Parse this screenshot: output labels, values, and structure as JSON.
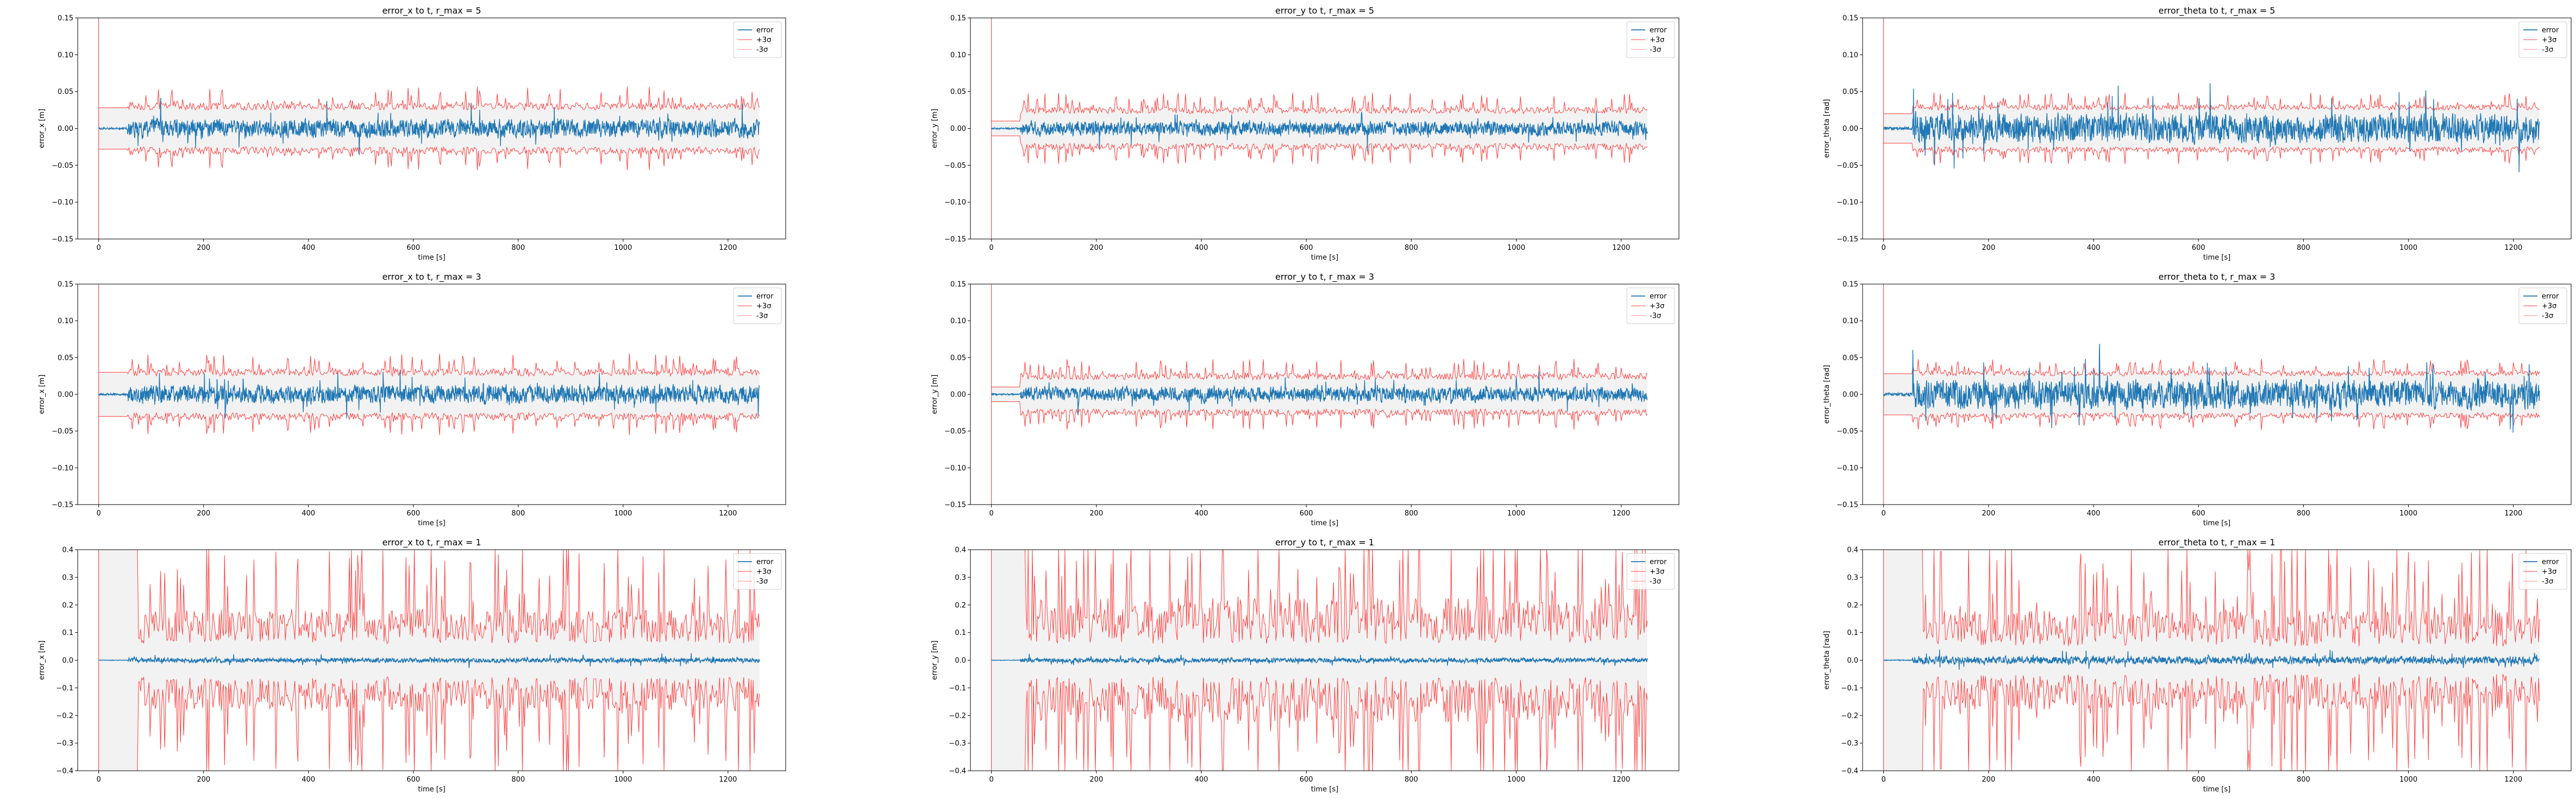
{
  "figure": {
    "colors": {
      "error": "#1f77b4",
      "bound": "#ff0000",
      "band": "#d9d9d9",
      "axes": "#000000"
    }
  },
  "chart_data": [
    {
      "type": "line",
      "title": "error_x to t, r_max = 5",
      "xlabel": "time [s]",
      "ylabel": "error_x [m]",
      "xlim": [
        -40,
        1310
      ],
      "ylim": [
        -0.15,
        0.15
      ],
      "xticks": [
        0,
        200,
        400,
        600,
        800,
        1000,
        1200
      ],
      "yticks": [
        -0.15,
        -0.1,
        -0.05,
        0.0,
        0.05,
        0.1,
        0.15
      ],
      "ytick_labels": [
        "−0.15",
        "−0.10",
        "−0.05",
        "0.00",
        "0.05",
        "0.10",
        "0.15"
      ],
      "legend": {
        "position": "top-right",
        "entries": [
          "error",
          "+3σ",
          "-3σ"
        ]
      },
      "series": [
        {
          "name": "error",
          "t_end": 1260,
          "start": 0,
          "noise": 0.009
        },
        {
          "name": "+3σ",
          "t_end": 1260,
          "base": 0.025,
          "amp": 0.02,
          "initial": 0.028
        },
        {
          "name": "-3σ",
          "t_end": 1260,
          "base": 0.025,
          "amp": 0.02,
          "initial": 0.028
        }
      ]
    },
    {
      "type": "line",
      "title": "error_y to t, r_max = 5",
      "xlabel": "time [s]",
      "ylabel": "error_y [m]",
      "xlim": [
        -40,
        1310
      ],
      "ylim": [
        -0.15,
        0.15
      ],
      "xticks": [
        0,
        200,
        400,
        600,
        800,
        1000,
        1200
      ],
      "yticks": [
        -0.15,
        -0.1,
        -0.05,
        0.0,
        0.05,
        0.1,
        0.15
      ],
      "ytick_labels": [
        "−0.15",
        "−0.10",
        "−0.05",
        "0.00",
        "0.05",
        "0.10",
        "0.15"
      ],
      "legend": {
        "position": "top-right",
        "entries": [
          "error",
          "+3σ",
          "-3σ"
        ]
      },
      "series": [
        {
          "name": "error",
          "t_end": 1250,
          "start": 0,
          "noise": 0.007
        },
        {
          "name": "+3σ",
          "t_end": 1250,
          "base": 0.02,
          "amp": 0.018,
          "initial": 0.01
        },
        {
          "name": "-3σ",
          "t_end": 1250,
          "base": 0.02,
          "amp": 0.018,
          "initial": 0.01
        }
      ]
    },
    {
      "type": "line",
      "title": "error_theta to t, r_max = 5",
      "xlabel": "time [s]",
      "ylabel": "error_theta [rad]",
      "xlim": [
        -40,
        1310
      ],
      "ylim": [
        -0.15,
        0.15
      ],
      "xticks": [
        0,
        200,
        400,
        600,
        800,
        1000,
        1200
      ],
      "yticks": [
        -0.15,
        -0.1,
        -0.05,
        0.0,
        0.05,
        0.1,
        0.15
      ],
      "ytick_labels": [
        "−0.15",
        "−0.10",
        "−0.05",
        "0.00",
        "0.05",
        "0.10",
        "0.15"
      ],
      "legend": {
        "position": "top-right",
        "entries": [
          "error",
          "+3σ",
          "-3σ"
        ]
      },
      "series": [
        {
          "name": "error",
          "t_end": 1250,
          "start": 0,
          "noise": 0.014
        },
        {
          "name": "+3σ",
          "t_end": 1250,
          "base": 0.025,
          "amp": 0.015,
          "initial": 0.02
        },
        {
          "name": "-3σ",
          "t_end": 1250,
          "base": 0.025,
          "amp": 0.015,
          "initial": 0.02
        }
      ]
    },
    {
      "type": "line",
      "title": "error_x to t, r_max = 3",
      "xlabel": "time [s]",
      "ylabel": "error_x [m]",
      "xlim": [
        -40,
        1310
      ],
      "ylim": [
        -0.15,
        0.15
      ],
      "xticks": [
        0,
        200,
        400,
        600,
        800,
        1000,
        1200
      ],
      "yticks": [
        -0.15,
        -0.1,
        -0.05,
        0.0,
        0.05,
        0.1,
        0.15
      ],
      "ytick_labels": [
        "−0.15",
        "−0.10",
        "−0.05",
        "0.00",
        "0.05",
        "0.10",
        "0.15"
      ],
      "legend": {
        "position": "top-right",
        "entries": [
          "error",
          "+3σ",
          "-3σ"
        ]
      },
      "series": [
        {
          "name": "error",
          "t_end": 1260,
          "start": 0,
          "noise": 0.009
        },
        {
          "name": "+3σ",
          "t_end": 1260,
          "base": 0.025,
          "amp": 0.02,
          "initial": 0.03
        },
        {
          "name": "-3σ",
          "t_end": 1260,
          "base": 0.025,
          "amp": 0.02,
          "initial": 0.03
        }
      ]
    },
    {
      "type": "line",
      "title": "error_y to t, r_max = 3",
      "xlabel": "time [s]",
      "ylabel": "error_y [m]",
      "xlim": [
        -40,
        1310
      ],
      "ylim": [
        -0.15,
        0.15
      ],
      "xticks": [
        0,
        200,
        400,
        600,
        800,
        1000,
        1200
      ],
      "yticks": [
        -0.15,
        -0.1,
        -0.05,
        0.0,
        0.05,
        0.1,
        0.15
      ],
      "ytick_labels": [
        "−0.15",
        "−0.10",
        "−0.05",
        "0.00",
        "0.05",
        "0.10",
        "0.15"
      ],
      "legend": {
        "position": "top-right",
        "entries": [
          "error",
          "+3σ",
          "-3σ"
        ]
      },
      "series": [
        {
          "name": "error",
          "t_end": 1250,
          "start": 0,
          "noise": 0.007
        },
        {
          "name": "+3σ",
          "t_end": 1250,
          "base": 0.02,
          "amp": 0.018,
          "initial": 0.01
        },
        {
          "name": "-3σ",
          "t_end": 1250,
          "base": 0.02,
          "amp": 0.018,
          "initial": 0.01
        }
      ]
    },
    {
      "type": "line",
      "title": "error_theta to t, r_max = 3",
      "xlabel": "time [s]",
      "ylabel": "error_theta [rad]",
      "xlim": [
        -40,
        1310
      ],
      "ylim": [
        -0.15,
        0.15
      ],
      "xticks": [
        0,
        200,
        400,
        600,
        800,
        1000,
        1200
      ],
      "yticks": [
        -0.15,
        -0.1,
        -0.05,
        0.0,
        0.05,
        0.1,
        0.15
      ],
      "ytick_labels": [
        "−0.15",
        "−0.10",
        "−0.05",
        "0.00",
        "0.05",
        "0.10",
        "0.15"
      ],
      "legend": {
        "position": "top-right",
        "entries": [
          "error",
          "+3σ",
          "-3σ"
        ]
      },
      "series": [
        {
          "name": "error",
          "t_end": 1250,
          "start": 0,
          "noise": 0.014
        },
        {
          "name": "+3σ",
          "t_end": 1250,
          "base": 0.025,
          "amp": 0.015,
          "initial": 0.028
        },
        {
          "name": "-3σ",
          "t_end": 1250,
          "base": 0.025,
          "amp": 0.015,
          "initial": 0.028
        }
      ]
    },
    {
      "type": "line",
      "title": "error_x to t, r_max = 1",
      "xlabel": "time [s]",
      "ylabel": "error_x [m]",
      "xlim": [
        -40,
        1310
      ],
      "ylim": [
        -0.4,
        0.4
      ],
      "xticks": [
        0,
        200,
        400,
        600,
        800,
        1000,
        1200
      ],
      "yticks": [
        -0.4,
        -0.3,
        -0.2,
        -0.1,
        0.0,
        0.1,
        0.2,
        0.3,
        0.4
      ],
      "ytick_labels": [
        "−0.4",
        "−0.3",
        "−0.2",
        "−0.1",
        "0.0",
        "0.1",
        "0.2",
        "0.3",
        "0.4"
      ],
      "legend": {
        "position": "top-right",
        "entries": [
          "error",
          "+3σ",
          "-3σ"
        ]
      },
      "series": [
        {
          "name": "error",
          "t_end": 1260,
          "start": 0,
          "noise": 0.006
        },
        {
          "name": "+3σ",
          "t_end": 1260,
          "base": 0.06,
          "amp": 0.25,
          "initial": 0.4,
          "initial_until": 75
        },
        {
          "name": "-3σ",
          "t_end": 1260,
          "base": 0.06,
          "amp": 0.25,
          "initial": 0.4,
          "initial_until": 75
        }
      ]
    },
    {
      "type": "line",
      "title": "error_y to t, r_max = 1",
      "xlabel": "time [s]",
      "ylabel": "error_y [m]",
      "xlim": [
        -40,
        1310
      ],
      "ylim": [
        -0.4,
        0.4
      ],
      "xticks": [
        0,
        200,
        400,
        600,
        800,
        1000,
        1200
      ],
      "yticks": [
        -0.4,
        -0.3,
        -0.2,
        -0.1,
        0.0,
        0.1,
        0.2,
        0.3,
        0.4
      ],
      "ytick_labels": [
        "−0.4",
        "−0.3",
        "−0.2",
        "−0.1",
        "0.0",
        "0.1",
        "0.2",
        "0.3",
        "0.4"
      ],
      "legend": {
        "position": "top-right",
        "entries": [
          "error",
          "+3σ",
          "-3σ"
        ]
      },
      "series": [
        {
          "name": "error",
          "t_end": 1250,
          "start": 0,
          "noise": 0.006
        },
        {
          "name": "+3σ",
          "t_end": 1250,
          "base": 0.06,
          "amp": 0.33,
          "initial": 0.4,
          "initial_until": 65
        },
        {
          "name": "-3σ",
          "t_end": 1250,
          "base": 0.06,
          "amp": 0.33,
          "initial": 0.4,
          "initial_until": 65
        }
      ]
    },
    {
      "type": "line",
      "title": "error_theta to t, r_max = 1",
      "xlabel": "time [s]",
      "ylabel": "error_theta [rad]",
      "xlim": [
        -40,
        1310
      ],
      "ylim": [
        -0.4,
        0.4
      ],
      "xticks": [
        0,
        200,
        400,
        600,
        800,
        1000,
        1200
      ],
      "yticks": [
        -0.4,
        -0.3,
        -0.2,
        -0.1,
        0.0,
        0.1,
        0.2,
        0.3,
        0.4
      ],
      "ytick_labels": [
        "−0.4",
        "−0.3",
        "−0.2",
        "−0.1",
        "0.0",
        "0.1",
        "0.2",
        "0.3",
        "0.4"
      ],
      "legend": {
        "position": "top-right",
        "entries": [
          "error",
          "+3σ",
          "-3σ"
        ]
      },
      "series": [
        {
          "name": "error",
          "t_end": 1250,
          "start": 0,
          "noise": 0.01
        },
        {
          "name": "+3σ",
          "t_end": 1250,
          "base": 0.05,
          "amp": 0.26,
          "initial": 0.4,
          "initial_until": 75
        },
        {
          "name": "-3σ",
          "t_end": 1250,
          "base": 0.05,
          "amp": 0.26,
          "initial": 0.4,
          "initial_until": 75
        }
      ]
    }
  ]
}
